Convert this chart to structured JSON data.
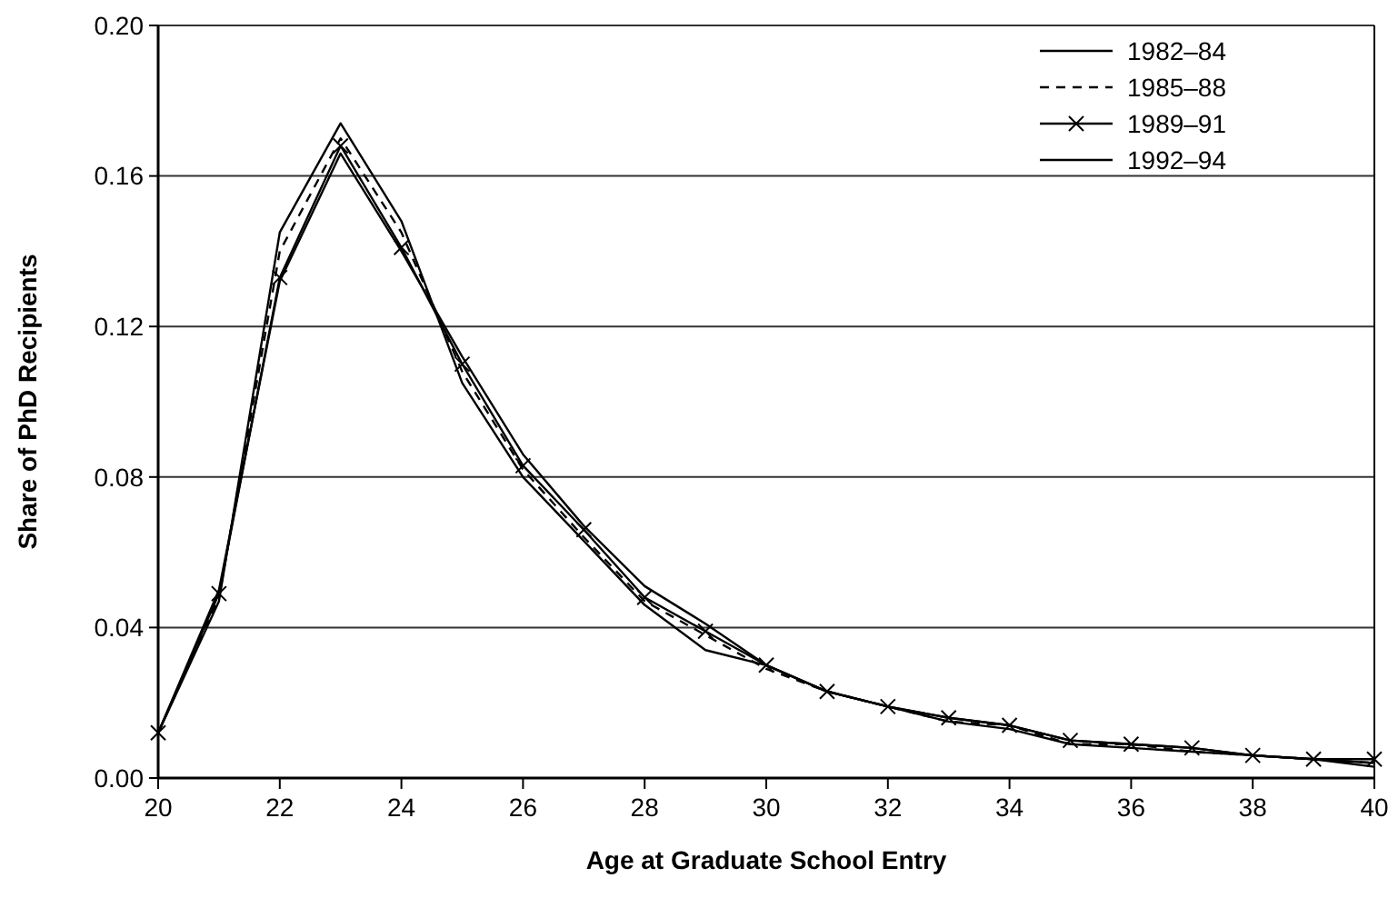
{
  "chart_data": {
    "type": "line",
    "xlabel": "Age at Graduate School Entry",
    "ylabel": "Share of PhD Recipients",
    "x": [
      20,
      21,
      22,
      23,
      24,
      25,
      26,
      27,
      28,
      29,
      30,
      31,
      32,
      33,
      34,
      35,
      36,
      37,
      38,
      39,
      40
    ],
    "series": [
      {
        "name": "1982–84",
        "color": "#000000",
        "line_style": "solid",
        "marker": "none",
        "values": [
          0.012,
          0.047,
          0.145,
          0.174,
          0.148,
          0.105,
          0.08,
          0.063,
          0.046,
          0.034,
          0.03,
          0.023,
          0.019,
          0.015,
          0.013,
          0.009,
          0.008,
          0.007,
          0.006,
          0.005,
          0.003
        ]
      },
      {
        "name": "1985–88",
        "color": "#000000",
        "line_style": "dashed",
        "marker": "none",
        "values": [
          0.012,
          0.048,
          0.14,
          0.17,
          0.145,
          0.108,
          0.082,
          0.064,
          0.047,
          0.038,
          0.029,
          0.023,
          0.019,
          0.015,
          0.014,
          0.009,
          0.009,
          0.007,
          0.006,
          0.005,
          0.004
        ]
      },
      {
        "name": "1989–91",
        "color": "#000000",
        "line_style": "solid",
        "marker": "cross",
        "values": [
          0.012,
          0.049,
          0.133,
          0.168,
          0.141,
          0.11,
          0.083,
          0.066,
          0.048,
          0.039,
          0.03,
          0.023,
          0.019,
          0.016,
          0.014,
          0.01,
          0.009,
          0.008,
          0.006,
          0.005,
          0.005
        ]
      },
      {
        "name": "1992–94",
        "color": "#000000",
        "line_style": "solid",
        "marker": "none",
        "values": [
          0.012,
          0.05,
          0.132,
          0.166,
          0.14,
          0.112,
          0.086,
          0.067,
          0.051,
          0.041,
          0.03,
          0.023,
          0.019,
          0.016,
          0.014,
          0.01,
          0.009,
          0.008,
          0.006,
          0.005,
          0.004
        ]
      }
    ],
    "xlim": [
      20,
      40
    ],
    "xticks": [
      20,
      22,
      24,
      26,
      28,
      30,
      32,
      34,
      36,
      38,
      40
    ],
    "ylim": [
      0,
      0.2
    ],
    "yticks": [
      {
        "value": 0,
        "label": "0.00"
      },
      {
        "value": 0.04,
        "label": "0.04"
      },
      {
        "value": 0.08,
        "label": "0.08"
      },
      {
        "value": 0.12,
        "label": "0.12"
      },
      {
        "value": 0.16,
        "label": "0.16"
      },
      {
        "value": 0.2,
        "label": "0.20"
      }
    ],
    "grid": "y",
    "legend": "top right"
  }
}
